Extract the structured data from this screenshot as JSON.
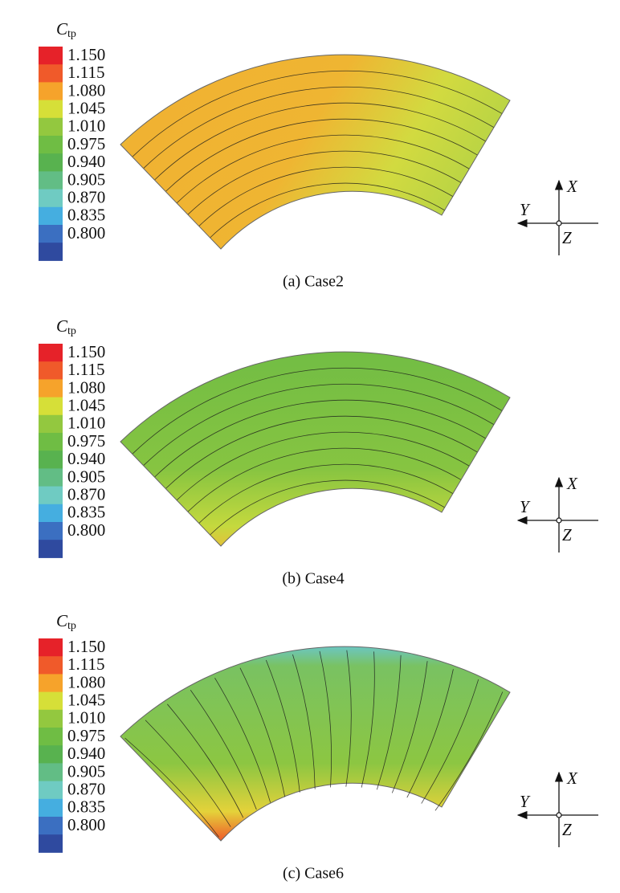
{
  "colorbar": {
    "symbol": "C",
    "subscript": "tp",
    "colors": [
      "#e62229",
      "#f05a2a",
      "#f6a32b",
      "#d6df38",
      "#93c83f",
      "#6fbd44",
      "#58b24f",
      "#62bd85",
      "#6fcbc2",
      "#45aee0",
      "#3b6fc1",
      "#2f4a9f"
    ],
    "ticks": [
      "1.150",
      "1.115",
      "1.080",
      "1.045",
      "1.010",
      "0.975",
      "0.940",
      "0.905",
      "0.870",
      "0.835",
      "0.800"
    ]
  },
  "axes": {
    "x": "X",
    "y": "Y",
    "z": "Z"
  },
  "panels": [
    {
      "caption": "(a) Case2"
    },
    {
      "caption": "(b) Case4"
    },
    {
      "caption": "(c) Case6"
    }
  ]
}
